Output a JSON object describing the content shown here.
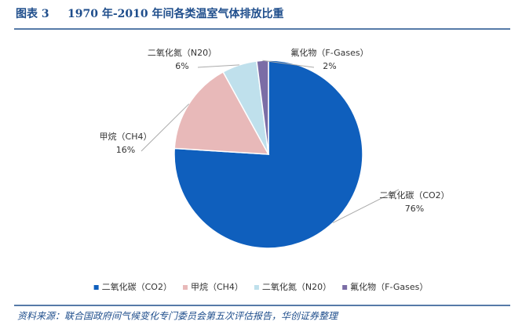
{
  "chart_data": {
    "type": "pie",
    "figure_label": "图表 3",
    "title": "1970 年-2010 年间各类温室气体排放比重",
    "categories": [
      "二氧化碳（CO2）",
      "甲烷（CH4）",
      "二氧化氮（N20）",
      "氟化物（F-Gases）"
    ],
    "values": [
      76,
      16,
      6,
      2
    ],
    "value_labels": [
      "76%",
      "16%",
      "6%",
      "2%"
    ],
    "colors": [
      "#0f5fbd",
      "#e8b9b9",
      "#bfe0ec",
      "#7b6da6"
    ],
    "legend": "bottom",
    "source": "资料来源：联合国政府间气候变化专门委员会第五次评估报告，华创证券整理"
  }
}
